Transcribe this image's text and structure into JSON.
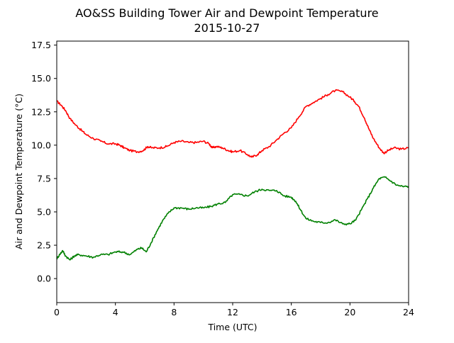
{
  "chart_data": {
    "type": "line",
    "title": "AO&SS Building Tower Air and Dewpoint Temperature",
    "subtitle": "2015-10-27",
    "xlabel": "Time (UTC)",
    "ylabel": "Air and Dewpoint Temperature (°C)",
    "xlim": [
      0,
      24
    ],
    "ylim": [
      -1.8,
      17.8
    ],
    "xticks": [
      0,
      4,
      8,
      12,
      16,
      20,
      24
    ],
    "yticks": [
      0.0,
      2.5,
      5.0,
      7.5,
      10.0,
      12.5,
      15.0,
      17.5
    ],
    "xtick_labels": [
      "0",
      "4",
      "8",
      "12",
      "16",
      "20",
      "24"
    ],
    "ytick_labels": [
      "0.0",
      "2.5",
      "5.0",
      "7.5",
      "10.0",
      "12.5",
      "15.0",
      "17.5"
    ],
    "grid": false,
    "series": [
      {
        "color": "#ff0000",
        "x": [
          0,
          0.3,
          0.6,
          0.9,
          1.3,
          1.7,
          2.0,
          2.5,
          3.0,
          3.5,
          4.0,
          4.3,
          4.6,
          5.0,
          5.5,
          5.9,
          6.2,
          6.5,
          7.0,
          7.5,
          8.0,
          8.5,
          9.0,
          9.5,
          10.0,
          10.4,
          10.6,
          10.9,
          11.3,
          11.7,
          12.0,
          12.5,
          13.0,
          13.3,
          13.7,
          14.0,
          14.5,
          15.0,
          15.5,
          16.0,
          16.5,
          17.0,
          17.5,
          18.0,
          18.5,
          19.0,
          19.5,
          20.0,
          20.3,
          20.6,
          21.0,
          21.3,
          21.6,
          22.0,
          22.3,
          22.6,
          23.0,
          23.5,
          24.0
        ],
        "values": [
          13.3,
          13.0,
          12.6,
          12.0,
          11.5,
          11.1,
          10.8,
          10.5,
          10.3,
          10.1,
          10.1,
          10.0,
          9.8,
          9.6,
          9.5,
          9.6,
          9.9,
          9.8,
          9.8,
          9.9,
          10.2,
          10.3,
          10.2,
          10.2,
          10.3,
          10.1,
          9.8,
          9.9,
          9.8,
          9.6,
          9.5,
          9.6,
          9.3,
          9.1,
          9.3,
          9.6,
          9.9,
          10.4,
          10.9,
          11.3,
          12.1,
          12.9,
          13.2,
          13.5,
          13.8,
          14.1,
          14.0,
          13.6,
          13.3,
          12.9,
          12.0,
          11.2,
          10.5,
          9.8,
          9.4,
          9.6,
          9.8,
          9.7,
          9.8
        ]
      },
      {
        "color": "#008000",
        "x": [
          0,
          0.2,
          0.4,
          0.6,
          0.9,
          1.2,
          1.5,
          2.0,
          2.5,
          3.0,
          3.5,
          4.0,
          4.5,
          5.0,
          5.5,
          5.8,
          6.1,
          6.4,
          6.8,
          7.2,
          7.6,
          8.0,
          8.5,
          9.0,
          9.5,
          10.0,
          10.5,
          11.0,
          11.5,
          12.0,
          12.5,
          13.0,
          13.5,
          14.0,
          14.5,
          15.0,
          15.5,
          16.0,
          16.3,
          16.6,
          17.0,
          17.5,
          18.0,
          18.5,
          19.0,
          19.5,
          20.0,
          20.4,
          20.8,
          21.2,
          21.6,
          22.0,
          22.4,
          22.8,
          23.2,
          23.6,
          24.0
        ],
        "values": [
          1.5,
          1.8,
          2.1,
          1.7,
          1.4,
          1.7,
          1.8,
          1.7,
          1.6,
          1.8,
          1.8,
          2.0,
          2.0,
          1.8,
          2.2,
          2.3,
          2.0,
          2.6,
          3.5,
          4.3,
          4.9,
          5.3,
          5.3,
          5.2,
          5.3,
          5.3,
          5.4,
          5.6,
          5.7,
          6.3,
          6.3,
          6.2,
          6.5,
          6.7,
          6.6,
          6.6,
          6.2,
          6.1,
          5.8,
          5.2,
          4.5,
          4.3,
          4.2,
          4.2,
          4.4,
          4.1,
          4.1,
          4.4,
          5.2,
          6.0,
          6.8,
          7.5,
          7.6,
          7.3,
          7.0,
          6.9,
          6.9
        ]
      }
    ]
  }
}
